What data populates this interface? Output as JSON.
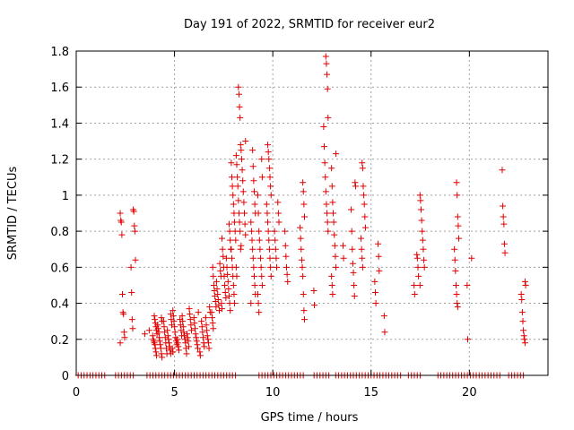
{
  "chart_data": {
    "type": "scatter",
    "title": "Day 191 of 2022, SRMTID for receiver eur2",
    "xlabel": "GPS time / hours",
    "ylabel": "SRMTID / TECUs",
    "xlim": [
      0,
      24
    ],
    "ylim": [
      0,
      1.8
    ],
    "xticks": [
      0,
      5,
      10,
      15,
      20
    ],
    "yticks": [
      0,
      0.2,
      0.4,
      0.6,
      0.8,
      1,
      1.2,
      1.4,
      1.6,
      1.8
    ],
    "xtick_labels": [
      "0",
      "5",
      "10",
      "15",
      "20"
    ],
    "ytick_labels": [
      "0",
      "0.2",
      "0.4",
      "0.6",
      "0.8",
      "1",
      "1.2",
      "1.4",
      "1.6",
      "1.8"
    ],
    "grid": true,
    "marker": "+",
    "series_color": "#e00000",
    "clusters": [
      {
        "x": 2.35,
        "values": [
          0.9,
          0.86,
          0.85,
          0.78,
          0.45,
          0.35,
          0.34,
          0.24,
          0.21,
          0.18
        ]
      },
      {
        "x": 2.9,
        "values": [
          0.92,
          0.91,
          0.83,
          0.8,
          0.64,
          0.6,
          0.46,
          0.31,
          0.26
        ]
      },
      {
        "x": 3.6,
        "values": [
          0.25,
          0.23
        ]
      },
      {
        "x": 4.0,
        "values": [
          0.33,
          0.31,
          0.29,
          0.27,
          0.25,
          0.23,
          0.22,
          0.2,
          0.19,
          0.18,
          0.17,
          0.15,
          0.13,
          0.11
        ]
      },
      {
        "x": 4.25,
        "values": [
          0.32,
          0.3,
          0.28,
          0.26,
          0.24,
          0.21,
          0.19,
          0.17,
          0.15,
          0.12,
          0.1
        ]
      },
      {
        "x": 4.5,
        "values": [
          0.3,
          0.27,
          0.24,
          0.21,
          0.18,
          0.15,
          0.12
        ]
      },
      {
        "x": 4.75,
        "values": [
          0.34,
          0.31,
          0.28,
          0.25,
          0.22,
          0.2,
          0.18,
          0.16,
          0.14,
          0.12
        ]
      },
      {
        "x": 5.0,
        "values": [
          0.36,
          0.33,
          0.3,
          0.27,
          0.24,
          0.21,
          0.19,
          0.17,
          0.15,
          0.13
        ]
      },
      {
        "x": 5.25,
        "values": [
          0.31,
          0.28,
          0.25,
          0.22,
          0.2,
          0.18,
          0.16,
          0.14
        ]
      },
      {
        "x": 5.5,
        "values": [
          0.33,
          0.3,
          0.27,
          0.24,
          0.22,
          0.2,
          0.18,
          0.15,
          0.12
        ]
      },
      {
        "x": 5.75,
        "values": [
          0.37,
          0.34,
          0.31,
          0.28,
          0.25,
          0.23,
          0.21,
          0.19,
          0.16
        ]
      },
      {
        "x": 6.1,
        "values": [
          0.35,
          0.32,
          0.29,
          0.26,
          0.23,
          0.21,
          0.19,
          0.17,
          0.15
        ]
      },
      {
        "x": 6.4,
        "values": [
          0.3,
          0.27,
          0.24,
          0.21,
          0.18,
          0.16,
          0.13,
          0.11
        ]
      },
      {
        "x": 6.7,
        "values": [
          0.38,
          0.35,
          0.32,
          0.28,
          0.25,
          0.22,
          0.2,
          0.18,
          0.15
        ]
      },
      {
        "x": 7.0,
        "values": [
          0.6,
          0.55,
          0.5,
          0.47,
          0.44,
          0.41,
          0.38,
          0.35,
          0.32,
          0.29,
          0.26
        ]
      },
      {
        "x": 7.25,
        "values": [
          0.62,
          0.58,
          0.55,
          0.52,
          0.48,
          0.45,
          0.42,
          0.39,
          0.36
        ]
      },
      {
        "x": 7.5,
        "values": [
          0.76,
          0.7,
          0.66,
          0.6,
          0.55,
          0.5,
          0.46,
          0.43,
          0.4,
          0.37
        ]
      },
      {
        "x": 7.75,
        "values": [
          0.84,
          0.8,
          0.75,
          0.7,
          0.65,
          0.6,
          0.56,
          0.52,
          0.48,
          0.44,
          0.4,
          0.36
        ]
      },
      {
        "x": 8.0,
        "values": [
          1.18,
          1.1,
          1.05,
          1.0,
          0.95,
          0.9,
          0.85,
          0.8,
          0.75,
          0.7,
          0.65,
          0.6,
          0.55,
          0.5,
          0.45,
          0.4
        ]
      },
      {
        "x": 8.25,
        "values": [
          1.6,
          1.56,
          1.49,
          1.43,
          1.28,
          1.22,
          1.17,
          1.1,
          1.05,
          0.97,
          0.9,
          0.85,
          0.8,
          0.7,
          0.6,
          0.55
        ]
      },
      {
        "x": 8.5,
        "values": [
          1.3,
          1.25,
          1.2,
          1.14,
          1.08,
          1.02,
          0.96,
          0.9,
          0.84,
          0.78,
          0.72
        ]
      },
      {
        "x": 9.0,
        "values": [
          1.25,
          1.16,
          1.08,
          1.02,
          0.95,
          0.9,
          0.85,
          0.8,
          0.75,
          0.7,
          0.65,
          0.6,
          0.55,
          0.5,
          0.45,
          0.4
        ]
      },
      {
        "x": 9.35,
        "values": [
          1.2,
          1.1,
          1.0,
          0.9,
          0.8,
          0.75,
          0.7,
          0.65,
          0.6,
          0.55,
          0.5,
          0.45,
          0.4,
          0.35
        ]
      },
      {
        "x": 9.8,
        "values": [
          1.28,
          1.24,
          1.2,
          1.15,
          1.1,
          1.05,
          1.0,
          0.95,
          0.9,
          0.85,
          0.8,
          0.75,
          0.7,
          0.65,
          0.6,
          0.55
        ]
      },
      {
        "x": 10.2,
        "values": [
          0.96,
          0.9,
          0.85,
          0.8,
          0.75,
          0.7,
          0.65,
          0.6
        ]
      },
      {
        "x": 10.7,
        "values": [
          0.8,
          0.72,
          0.66,
          0.6,
          0.56,
          0.52
        ]
      },
      {
        "x": 11.5,
        "values": [
          1.07,
          1.02,
          0.95,
          0.88,
          0.82,
          0.76,
          0.7,
          0.64,
          0.6,
          0.55,
          0.45,
          0.36,
          0.31
        ]
      },
      {
        "x": 12.2,
        "values": [
          0.47,
          0.39
        ]
      },
      {
        "x": 12.7,
        "values": [
          1.77,
          1.73,
          1.67,
          1.59,
          1.43,
          1.38,
          1.27,
          1.18,
          1.1,
          1.02,
          0.95,
          0.9,
          0.85,
          0.8
        ]
      },
      {
        "x": 13.1,
        "values": [
          1.23,
          1.15,
          1.05,
          0.96,
          0.9,
          0.85,
          0.78,
          0.72,
          0.66,
          0.6,
          0.55,
          0.5,
          0.45
        ]
      },
      {
        "x": 13.6,
        "values": [
          0.72,
          0.65
        ]
      },
      {
        "x": 14.1,
        "values": [
          1.07,
          1.05,
          0.92,
          0.8,
          0.7,
          0.62,
          0.57,
          0.5,
          0.44
        ]
      },
      {
        "x": 14.6,
        "values": [
          1.18,
          1.15,
          1.05,
          1.0,
          0.95,
          0.88,
          0.82,
          0.76,
          0.7,
          0.65,
          0.6
        ]
      },
      {
        "x": 15.3,
        "values": [
          0.73,
          0.66,
          0.58,
          0.52,
          0.46,
          0.4
        ]
      },
      {
        "x": 15.75,
        "values": [
          0.33,
          0.24
        ]
      },
      {
        "x": 17.3,
        "values": [
          0.67,
          0.65,
          0.6,
          0.55,
          0.5,
          0.45
        ]
      },
      {
        "x": 17.6,
        "values": [
          1.0,
          0.97,
          0.92,
          0.86,
          0.8,
          0.75,
          0.7,
          0.64,
          0.6,
          0.5
        ]
      },
      {
        "x": 19.35,
        "values": [
          1.07,
          1.0,
          0.88,
          0.83,
          0.76,
          0.7,
          0.64,
          0.58,
          0.5,
          0.45,
          0.4,
          0.38
        ]
      },
      {
        "x": 20.0,
        "values": [
          0.65,
          0.5,
          0.2
        ]
      },
      {
        "x": 21.7,
        "values": [
          1.14,
          0.94,
          0.88,
          0.84,
          0.73,
          0.68
        ]
      },
      {
        "x": 22.75,
        "values": [
          0.52,
          0.5,
          0.45,
          0.42,
          0.35,
          0.3,
          0.25,
          0.22,
          0.2,
          0.18
        ]
      }
    ],
    "zero_baseline": {
      "y": 0,
      "x_ranges": [
        [
          0.1,
          1.5
        ],
        [
          2.0,
          3.0
        ],
        [
          3.6,
          8.1
        ],
        [
          9.3,
          11.6
        ],
        [
          12.1,
          12.9
        ],
        [
          13.2,
          16.5
        ],
        [
          16.9,
          17.6
        ],
        [
          18.4,
          21.6
        ],
        [
          22.0,
          22.8
        ]
      ],
      "step": 0.15
    }
  }
}
